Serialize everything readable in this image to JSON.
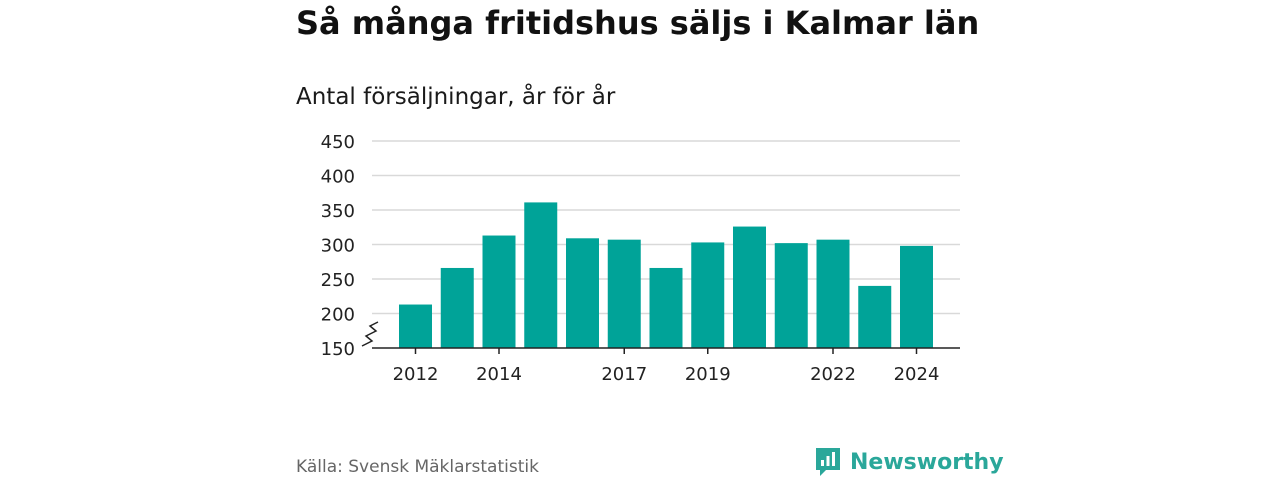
{
  "header": {
    "title": "Så många fritidshus säljs i Kalmar län",
    "subtitle": "Antal försäljningar, år för år"
  },
  "footer": {
    "source": "Källa: Svensk Mäklarstatistik",
    "brand": "Newsworthy"
  },
  "colors": {
    "bar": "#00a398",
    "grid": "#d9d9d9",
    "axis": "#222222",
    "brand": "#2aa79a"
  },
  "chart_data": {
    "type": "bar",
    "categories": [
      "2012",
      "2013",
      "2014",
      "2015",
      "2016",
      "2017",
      "2018",
      "2019",
      "2020",
      "2021",
      "2022",
      "2023",
      "2024"
    ],
    "values": [
      213,
      266,
      313,
      361,
      309,
      307,
      266,
      303,
      326,
      302,
      307,
      240,
      298
    ],
    "x_tick_labels": [
      "2012",
      "",
      "2014",
      "",
      "",
      "2017",
      "",
      "2019",
      "",
      "",
      "2022",
      "",
      "2024"
    ],
    "y_ticks": [
      150,
      200,
      250,
      300,
      350,
      400,
      450
    ],
    "ylim": [
      150,
      450
    ],
    "axis_break": true,
    "grid": true,
    "title": "Så många fritidshus säljs i Kalmar län",
    "subtitle": "Antal försäljningar, år för år"
  }
}
